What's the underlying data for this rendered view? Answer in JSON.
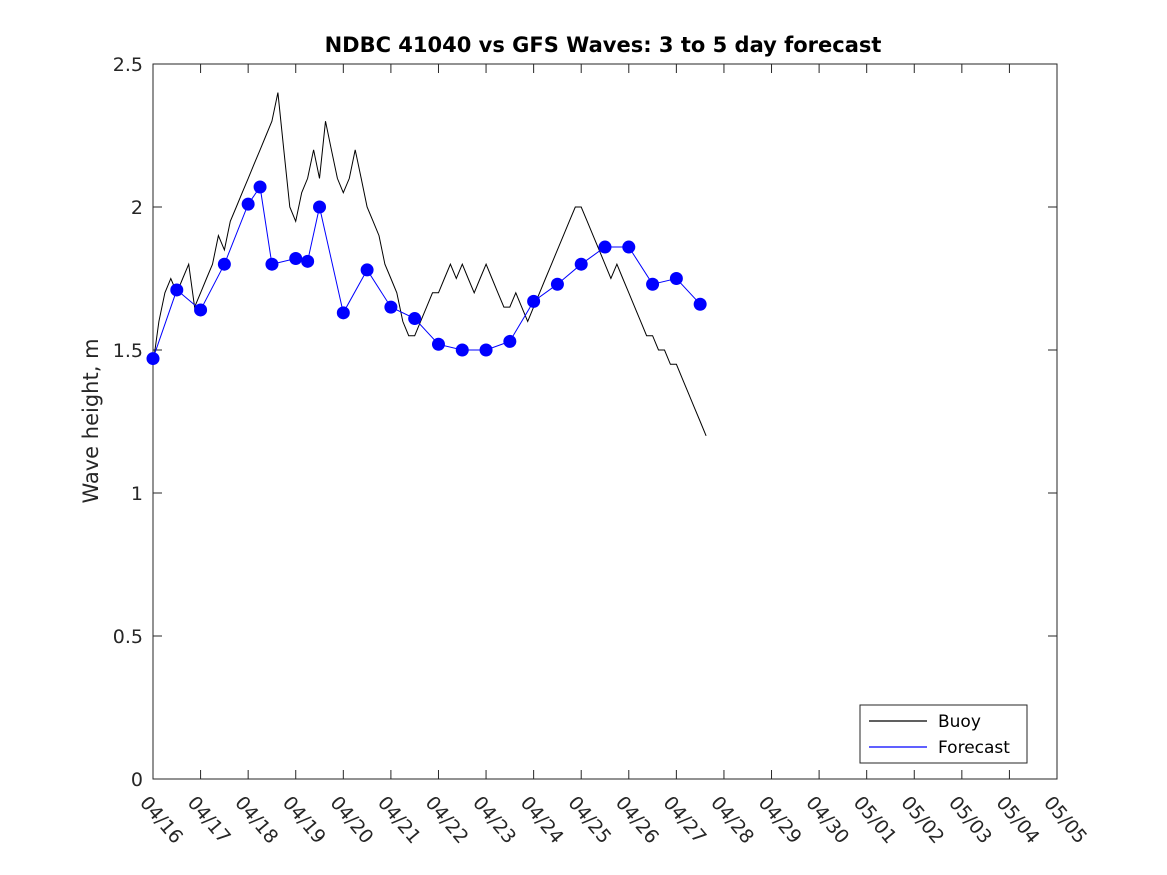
{
  "chart_data": {
    "type": "line",
    "title": "NDBC 41040 vs GFS Waves: 3 to 5 day forecast",
    "xlabel": "",
    "ylabel": "Wave height, m",
    "ylim": [
      0,
      2.5
    ],
    "yticks": [
      0,
      0.5,
      1,
      1.5,
      2,
      2.5
    ],
    "ytick_labels": [
      "0",
      "0.5",
      "1",
      "1.5",
      "2",
      "2.5"
    ],
    "xlim": [
      "2024-04-16",
      "2024-05-05"
    ],
    "xtick_labels": [
      "04/16",
      "04/17",
      "04/18",
      "04/19",
      "04/20",
      "04/21",
      "04/22",
      "04/23",
      "04/24",
      "04/25",
      "04/26",
      "04/27",
      "04/28",
      "04/29",
      "04/30",
      "05/01",
      "05/02",
      "05/03",
      "05/04",
      "05/05"
    ],
    "grid": false,
    "legend_position": "bottom-right",
    "legend": [
      "Buoy",
      "Forecast"
    ],
    "colors": {
      "buoy": "#000000",
      "forecast": "#0000ff"
    },
    "series": [
      {
        "name": "Buoy",
        "kind": "line",
        "x_day_offset_note": "",
        "points": [
          [
            "04/16 00:00",
            1.45
          ],
          [
            "04/16 03:00",
            1.6
          ],
          [
            "04/16 06:00",
            1.7
          ],
          [
            "04/16 09:00",
            1.75
          ],
          [
            "04/16 12:00",
            1.7
          ],
          [
            "04/16 15:00",
            1.75
          ],
          [
            "04/16 18:00",
            1.8
          ],
          [
            "04/16 21:00",
            1.65
          ],
          [
            "04/17 00:00",
            1.7
          ],
          [
            "04/17 03:00",
            1.75
          ],
          [
            "04/17 06:00",
            1.8
          ],
          [
            "04/17 09:00",
            1.9
          ],
          [
            "04/17 12:00",
            1.85
          ],
          [
            "04/17 15:00",
            1.95
          ],
          [
            "04/17 18:00",
            2.0
          ],
          [
            "04/17 21:00",
            2.05
          ],
          [
            "04/18 00:00",
            2.1
          ],
          [
            "04/18 03:00",
            2.15
          ],
          [
            "04/18 06:00",
            2.2
          ],
          [
            "04/18 09:00",
            2.25
          ],
          [
            "04/18 12:00",
            2.3
          ],
          [
            "04/18 15:00",
            2.4
          ],
          [
            "04/18 18:00",
            2.2
          ],
          [
            "04/18 21:00",
            2.0
          ],
          [
            "04/19 00:00",
            1.95
          ],
          [
            "04/19 03:00",
            2.05
          ],
          [
            "04/19 06:00",
            2.1
          ],
          [
            "04/19 09:00",
            2.2
          ],
          [
            "04/19 12:00",
            2.1
          ],
          [
            "04/19 15:00",
            2.3
          ],
          [
            "04/19 18:00",
            2.2
          ],
          [
            "04/19 21:00",
            2.1
          ],
          [
            "04/20 00:00",
            2.05
          ],
          [
            "04/20 03:00",
            2.1
          ],
          [
            "04/20 06:00",
            2.2
          ],
          [
            "04/20 09:00",
            2.1
          ],
          [
            "04/20 12:00",
            2.0
          ],
          [
            "04/20 15:00",
            1.95
          ],
          [
            "04/20 18:00",
            1.9
          ],
          [
            "04/20 21:00",
            1.8
          ],
          [
            "04/21 00:00",
            1.75
          ],
          [
            "04/21 03:00",
            1.7
          ],
          [
            "04/21 06:00",
            1.6
          ],
          [
            "04/21 09:00",
            1.55
          ],
          [
            "04/21 12:00",
            1.55
          ],
          [
            "04/21 15:00",
            1.6
          ],
          [
            "04/21 18:00",
            1.65
          ],
          [
            "04/21 21:00",
            1.7
          ],
          [
            "04/22 00:00",
            1.7
          ],
          [
            "04/22 03:00",
            1.75
          ],
          [
            "04/22 06:00",
            1.8
          ],
          [
            "04/22 09:00",
            1.75
          ],
          [
            "04/22 12:00",
            1.8
          ],
          [
            "04/22 15:00",
            1.75
          ],
          [
            "04/22 18:00",
            1.7
          ],
          [
            "04/22 21:00",
            1.75
          ],
          [
            "04/23 00:00",
            1.8
          ],
          [
            "04/23 03:00",
            1.75
          ],
          [
            "04/23 06:00",
            1.7
          ],
          [
            "04/23 09:00",
            1.65
          ],
          [
            "04/23 12:00",
            1.65
          ],
          [
            "04/23 15:00",
            1.7
          ],
          [
            "04/23 18:00",
            1.65
          ],
          [
            "04/23 21:00",
            1.6
          ],
          [
            "04/24 00:00",
            1.65
          ],
          [
            "04/24 03:00",
            1.7
          ],
          [
            "04/24 06:00",
            1.75
          ],
          [
            "04/24 09:00",
            1.8
          ],
          [
            "04/24 12:00",
            1.85
          ],
          [
            "04/24 15:00",
            1.9
          ],
          [
            "04/24 18:00",
            1.95
          ],
          [
            "04/24 21:00",
            2.0
          ],
          [
            "04/25 00:00",
            2.0
          ],
          [
            "04/25 03:00",
            1.95
          ],
          [
            "04/25 06:00",
            1.9
          ],
          [
            "04/25 09:00",
            1.85
          ],
          [
            "04/25 12:00",
            1.8
          ],
          [
            "04/25 15:00",
            1.75
          ],
          [
            "04/25 18:00",
            1.8
          ],
          [
            "04/25 21:00",
            1.75
          ],
          [
            "04/26 00:00",
            1.7
          ],
          [
            "04/26 03:00",
            1.65
          ],
          [
            "04/26 06:00",
            1.6
          ],
          [
            "04/26 09:00",
            1.55
          ],
          [
            "04/26 12:00",
            1.55
          ],
          [
            "04/26 15:00",
            1.5
          ],
          [
            "04/26 18:00",
            1.5
          ],
          [
            "04/26 21:00",
            1.45
          ],
          [
            "04/27 00:00",
            1.45
          ],
          [
            "04/27 03:00",
            1.4
          ],
          [
            "04/27 06:00",
            1.35
          ],
          [
            "04/27 09:00",
            1.3
          ],
          [
            "04/27 12:00",
            1.25
          ],
          [
            "04/27 15:00",
            1.2
          ]
        ]
      },
      {
        "name": "Forecast",
        "kind": "markers",
        "points": [
          [
            "04/16 00:00",
            1.47
          ],
          [
            "04/16 12:00",
            1.71
          ],
          [
            "04/17 00:00",
            1.64
          ],
          [
            "04/17 12:00",
            1.8
          ],
          [
            "04/18 00:00",
            2.01
          ],
          [
            "04/18 06:00",
            2.07
          ],
          [
            "04/18 12:00",
            1.8
          ],
          [
            "04/19 00:00",
            1.82
          ],
          [
            "04/19 06:00",
            1.81
          ],
          [
            "04/19 12:00",
            2.0
          ],
          [
            "04/20 00:00",
            1.63
          ],
          [
            "04/20 12:00",
            1.78
          ],
          [
            "04/21 00:00",
            1.65
          ],
          [
            "04/21 12:00",
            1.61
          ],
          [
            "04/22 00:00",
            1.52
          ],
          [
            "04/22 12:00",
            1.5
          ],
          [
            "04/23 00:00",
            1.5
          ],
          [
            "04/23 12:00",
            1.53
          ],
          [
            "04/24 00:00",
            1.67
          ],
          [
            "04/24 12:00",
            1.73
          ],
          [
            "04/25 00:00",
            1.8
          ],
          [
            "04/25 12:00",
            1.86
          ],
          [
            "04/26 00:00",
            1.86
          ],
          [
            "04/26 12:00",
            1.73
          ],
          [
            "04/27 00:00",
            1.75
          ],
          [
            "04/27 12:00",
            1.66
          ]
        ]
      }
    ]
  }
}
